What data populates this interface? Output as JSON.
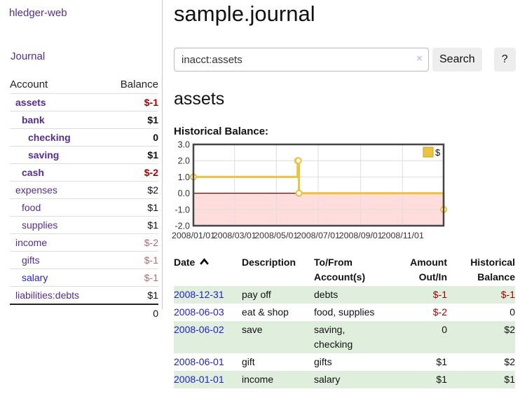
{
  "app": {
    "brand": "hledger-web",
    "nav_journal": "Journal"
  },
  "sidebar": {
    "accounts_header": {
      "account": "Account",
      "balance": "Balance"
    },
    "accounts": [
      {
        "name": "assets",
        "indent": 1,
        "bold": true,
        "balance": "$-1",
        "balance_style": "neg-strong"
      },
      {
        "name": "bank",
        "indent": 2,
        "bold": true,
        "balance": "$1",
        "balance_style": "pos-strong"
      },
      {
        "name": "checking",
        "indent": 3,
        "bold": true,
        "balance": "0",
        "balance_style": "pos-strong"
      },
      {
        "name": "saving",
        "indent": 3,
        "bold": true,
        "balance": "$1",
        "balance_style": "pos-strong"
      },
      {
        "name": "cash",
        "indent": 2,
        "bold": true,
        "balance": "$-2",
        "balance_style": "neg-strong"
      },
      {
        "name": "expenses",
        "indent": 1,
        "bold": false,
        "balance": "$2",
        "balance_style": "pos"
      },
      {
        "name": "food",
        "indent": 2,
        "bold": false,
        "balance": "$1",
        "balance_style": "pos"
      },
      {
        "name": "supplies",
        "indent": 2,
        "bold": false,
        "balance": "$1",
        "balance_style": "pos"
      },
      {
        "name": "income",
        "indent": 1,
        "bold": false,
        "balance": "$-2",
        "balance_style": "neg"
      },
      {
        "name": "gifts",
        "indent": 2,
        "bold": false,
        "balance": "$-1",
        "balance_style": "neg"
      },
      {
        "name": "salary",
        "indent": 2,
        "bold": false,
        "balance": "$-1",
        "balance_style": "neg",
        "link_color": "blue"
      },
      {
        "name": "liabilities:debts",
        "indent": 1,
        "bold": false,
        "balance": "$1",
        "balance_style": "pos"
      }
    ],
    "total": "0"
  },
  "header": {
    "title": "sample.journal"
  },
  "search": {
    "value": "inacct:assets",
    "clear_label": "×",
    "button_label": "Search",
    "help_label": "?"
  },
  "main": {
    "heading": "assets",
    "chart_label": "Historical Balance:"
  },
  "chart_data": {
    "type": "line",
    "step": true,
    "title": "Historical Balance",
    "series": [
      {
        "name": "$",
        "color": "#edc240",
        "points": [
          [
            "2008-01-01",
            1
          ],
          [
            "2008-06-01",
            2
          ],
          [
            "2008-06-02",
            2
          ],
          [
            "2008-06-03",
            0
          ],
          [
            "2008-12-31",
            -1
          ]
        ]
      }
    ],
    "xlim": [
      "2008-01-01",
      "2008-12-31"
    ],
    "ylim": [
      -2,
      3
    ],
    "y_ticks": [
      3,
      2,
      1,
      0,
      -1,
      -2
    ],
    "y_tick_labels": [
      "3.0",
      "2.0",
      "1.0",
      "0.0",
      "-1.0",
      "-2.0"
    ],
    "x_ticks": [
      "2008-01-01",
      "2008-03-01",
      "2008-05-01",
      "2008-07-01",
      "2008-09-01",
      "2008-11-01"
    ],
    "x_tick_labels": [
      "2008/01/01",
      "2008/03/01",
      "2008/05/01",
      "2008/07/01",
      "2008/09/01",
      "2008/11/01"
    ],
    "legend": {
      "label": "$",
      "position": "top-right"
    },
    "grid": true,
    "negative_region_fill": "#ffdddd",
    "zero_line_color": "#8b0000"
  },
  "register": {
    "headers": [
      {
        "line1": "Date",
        "sorted": "asc"
      },
      {
        "line1": "Description"
      },
      {
        "line1": "To/From",
        "line2": "Account(s)"
      },
      {
        "line1": "Amount",
        "line2": "Out/In",
        "align": "right"
      },
      {
        "line1": "Historical",
        "line2": "Balance",
        "align": "right"
      }
    ],
    "rows": [
      {
        "date": "2008-12-31",
        "description": "pay off",
        "accounts": "debts",
        "amount": "$-1",
        "balance": "$-1"
      },
      {
        "date": "2008-06-03",
        "description": "eat & shop",
        "accounts": "food, supplies",
        "amount": "$-2",
        "balance": "0"
      },
      {
        "date": "2008-06-02",
        "description": "save",
        "accounts": "saving, checking",
        "amount": "0",
        "balance": "$2"
      },
      {
        "date": "2008-06-01",
        "description": "gift",
        "accounts": "gifts",
        "amount": "$1",
        "balance": "$2"
      },
      {
        "date": "2008-01-01",
        "description": "income",
        "accounts": "salary",
        "amount": "$1",
        "balance": "$1"
      }
    ]
  }
}
